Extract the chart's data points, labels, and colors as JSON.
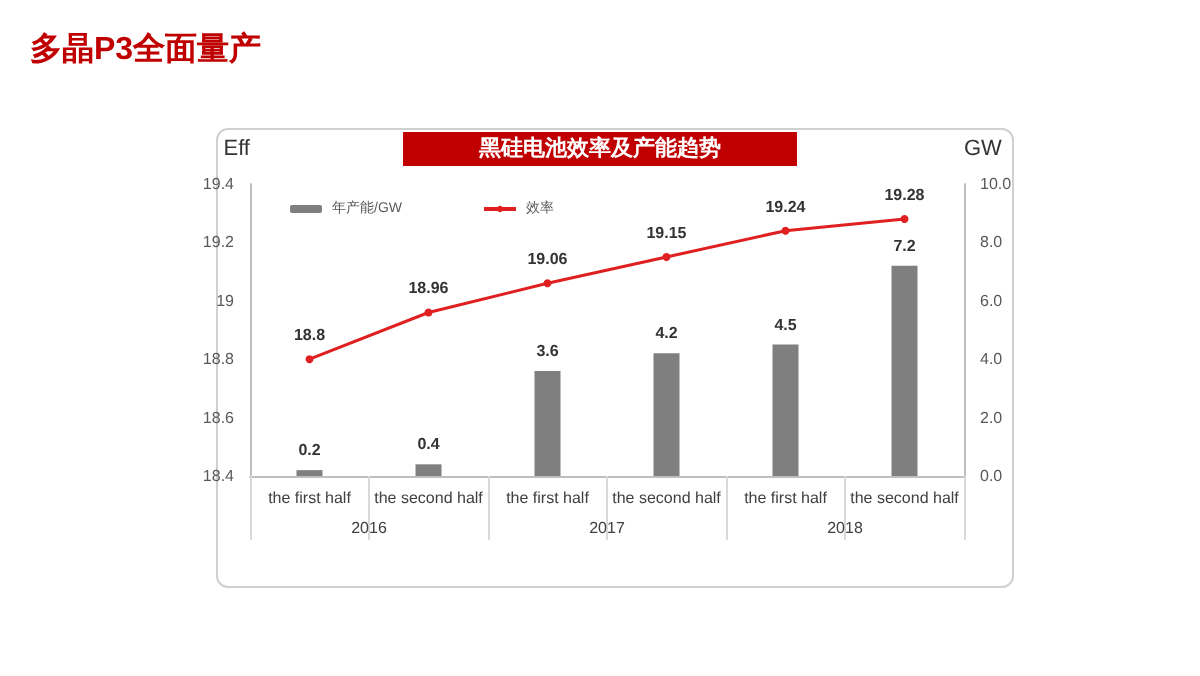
{
  "chart_data": {
    "type": "bar",
    "title": "多晶P3全面量产",
    "subtitle": "黑硅电池效率及产能趋势",
    "ylabel": "Eff",
    "y2label": "GW",
    "categories": [
      "the first half",
      "the second half",
      "the first half",
      "the second half",
      "the first half",
      "the second half"
    ],
    "annotations": [
      "2016",
      "2017",
      "2018"
    ],
    "series": [
      {
        "name": "年产能/GW",
        "axis": "y2",
        "color": "#7f7f7f",
        "values": [
          0.2,
          0.4,
          3.6,
          4.2,
          4.5,
          7.2
        ]
      },
      {
        "name": "效率",
        "type": "line",
        "color": "#e02020",
        "values": [
          18.8,
          18.96,
          19.06,
          19.15,
          19.24,
          19.28
        ]
      }
    ],
    "ylim": [
      18.4,
      19.4
    ],
    "yticks": [
      18.4,
      18.6,
      18.8,
      19,
      19.2,
      19.4
    ],
    "y2lim": [
      0,
      10
    ],
    "y2ticks": [
      {
        "value": 0,
        "label": "0.0"
      },
      {
        "value": 2,
        "label": "2.0"
      },
      {
        "value": 4,
        "label": "4.0"
      },
      {
        "value": 6,
        "label": "6.0"
      },
      {
        "value": 8,
        "label": "8.0"
      },
      {
        "value": 10,
        "label": "10.0"
      }
    ],
    "data_labels": true,
    "grid": false,
    "legend": "top left",
    "marker": "circle",
    "line_style": "solid"
  }
}
